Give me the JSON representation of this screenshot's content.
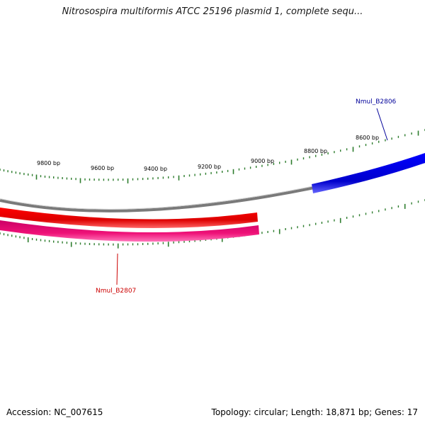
{
  "title": "Nitrosospira multiformis ATCC 25196 plasmid 1, complete sequ...",
  "footer": {
    "accession": "Accession: NC_007615",
    "summary": "Topology: circular; Length: 18,871 bp; Genes: 17"
  },
  "colors": {
    "tick": "#2e7d2e",
    "backbone_outer": "#808080",
    "forward_gene": "#0000e6",
    "reverse_gene_1": "#ee0000",
    "reverse_gene_2": "#ee1177",
    "forward_label": "#000099",
    "reverse_label": "#cc0000"
  },
  "ticks": {
    "upper_labels": [
      "9800 bp",
      "9600 bp",
      "9400 bp",
      "9200 bp",
      "9000 bp",
      "8800 bp",
      "8600 bp"
    ]
  },
  "genes": {
    "forward": {
      "name": "Nmul_B2806"
    },
    "reverse": {
      "name": "Nmul_B2807"
    }
  }
}
